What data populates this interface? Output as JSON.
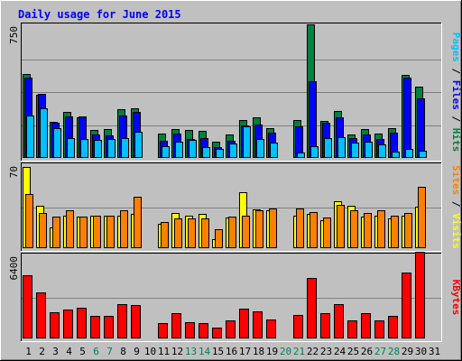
{
  "chart_data": {
    "type": "bar",
    "title": "Daily usage for June 2015",
    "x": [
      "1",
      "2",
      "3",
      "4",
      "5",
      "6",
      "7",
      "8",
      "9",
      "10",
      "11",
      "12",
      "13",
      "14",
      "15",
      "16",
      "17",
      "18",
      "19",
      "20",
      "21",
      "22",
      "23",
      "24",
      "25",
      "26",
      "27",
      "28",
      "29",
      "30",
      "31"
    ],
    "weekend_days": [
      "6",
      "7",
      "13",
      "14",
      "20",
      "21",
      "27",
      "28"
    ],
    "panels": [
      {
        "id": "top",
        "ylabel_parts": [
          {
            "text": "Pages",
            "color": "#00c0ff"
          },
          {
            "text": " / ",
            "color": "#000000"
          },
          {
            "text": "Files",
            "color": "#0000ff"
          },
          {
            "text": " / ",
            "color": "#000000"
          },
          {
            "text": "Hits",
            "color": "#008040"
          }
        ],
        "ymax_label": "750",
        "ymax": 750,
        "series": [
          {
            "name": "Hits",
            "color": "#008040",
            "values": [
              480,
              361,
              205,
              262,
              232,
              158,
              163,
              275,
              282,
              0,
              139,
              162,
              157,
              154,
              94,
              132,
              215,
              232,
              168,
              0,
              214,
              760,
              211,
              265,
              136,
              164,
              141,
              167,
              474,
              408,
              0
            ]
          },
          {
            "name": "Files",
            "color": "#0000ff",
            "values": [
              458,
              366,
              199,
              235,
              235,
              131,
              130,
              240,
              264,
              0,
              100,
              138,
              108,
              111,
              63,
              100,
              184,
              192,
              142,
              0,
              181,
              436,
              199,
              233,
              111,
              136,
              110,
              143,
              457,
              340,
              0
            ]
          },
          {
            "name": "Pages",
            "color": "#00c0ff",
            "values": [
              242,
              284,
              167,
              113,
              108,
              104,
              109,
              111,
              150,
              0,
              65,
              95,
              104,
              62,
              50,
              80,
              180,
              109,
              86,
              0,
              31,
              65,
              115,
              119,
              87,
              92,
              79,
              34,
              51,
              42,
              0
            ]
          }
        ]
      },
      {
        "id": "middle",
        "ylabel_parts": [
          {
            "text": "Sites",
            "color": "#ff8000"
          },
          {
            "text": " / ",
            "color": "#000000"
          },
          {
            "text": "Visits",
            "color": "#ffff00"
          }
        ],
        "ymax_label": "70",
        "ymax": 70,
        "series": [
          {
            "name": "Visits",
            "color": "#ffff00",
            "values": [
              69,
              36,
              18,
              28,
              27,
              28,
              28,
              28,
              29,
              0,
              21,
              30,
              28,
              29,
              8,
              26,
              48,
              33,
              32,
              0,
              28,
              29,
              24,
              40,
              36,
              27,
              28,
              25,
              28,
              35,
              0
            ]
          },
          {
            "name": "Sites",
            "color": "#ff8000",
            "values": [
              46,
              30,
              27,
              32,
              27,
              28,
              28,
              32,
              44,
              0,
              22,
              25,
              25,
              25,
              16,
              27,
              28,
              32,
              34,
              0,
              34,
              31,
              26,
              37,
              32,
              30,
              32,
              28,
              30,
              52,
              0
            ]
          }
        ]
      },
      {
        "id": "bottom",
        "ylabel_parts": [
          {
            "text": "KBytes",
            "color": "#ff0000"
          }
        ],
        "ymax_label": "6400",
        "ymax": 6400,
        "series": [
          {
            "name": "KBytes",
            "color": "#ff0000",
            "values": [
              4900,
              3556,
              2011,
              2222,
              2367,
              1733,
              1767,
              2689,
              2611,
              0,
              1189,
              2000,
              1244,
              1222,
              878,
              1433,
              2300,
              2145,
              1455,
              0,
              1856,
              4700,
              2000,
              2689,
              1411,
              1978,
              1411,
              1733,
              5167,
              6900,
              0
            ]
          }
        ]
      }
    ]
  }
}
